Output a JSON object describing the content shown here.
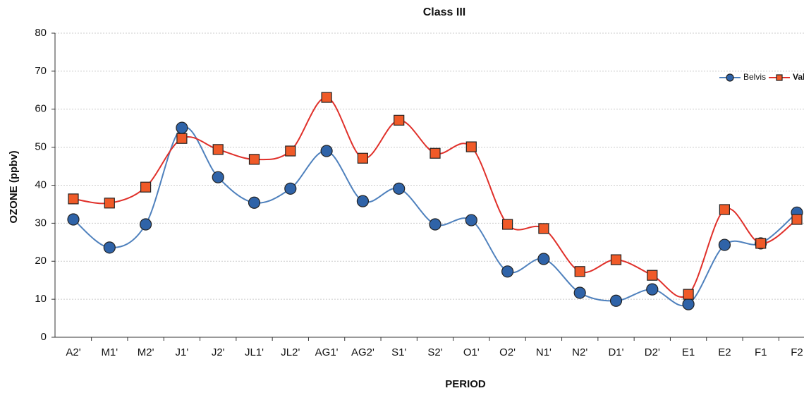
{
  "chart_data": {
    "type": "line",
    "title": "Class III",
    "x_label": "PERIOD",
    "y_label": "OZONE (ppbv)",
    "categories": [
      "A2'",
      "M1'",
      "M2'",
      "J1'",
      "J2'",
      "JL1'",
      "JL2'",
      "AG1'",
      "AG2'",
      "S1'",
      "S2'",
      "O1'",
      "O2'",
      "N1'",
      "N2'",
      "D1'",
      "D2'",
      "E1",
      "E2",
      "F1",
      "F2"
    ],
    "series": [
      {
        "name": "Belvis",
        "color": "#4f81bd",
        "marker_color": "#2f63a8",
        "marker": "circle",
        "values": [
          31,
          23.6,
          29.7,
          55.1,
          42.1,
          35.4,
          39.1,
          49,
          35.8,
          39.1,
          29.7,
          30.8,
          17.3,
          20.6,
          11.7,
          9.6,
          12.6,
          8.7,
          24.3,
          24.7,
          32.8
        ]
      },
      {
        "name": "Valde",
        "color": "#e0302a",
        "marker_color": "#f05a28",
        "marker": "square",
        "values": [
          36.4,
          35.3,
          39.5,
          52.3,
          49.4,
          46.8,
          49,
          63.1,
          47.1,
          57.1,
          48.4,
          50.1,
          29.7,
          28.6,
          17.3,
          20.4,
          16.3,
          11.3,
          33.6,
          24.7,
          31
        ]
      }
    ],
    "ylim": [
      0,
      80
    ],
    "yticks": [
      0,
      10,
      20,
      30,
      40,
      50,
      60,
      70,
      80
    ],
    "grid": true,
    "smooth": true,
    "legend": "top-right"
  }
}
